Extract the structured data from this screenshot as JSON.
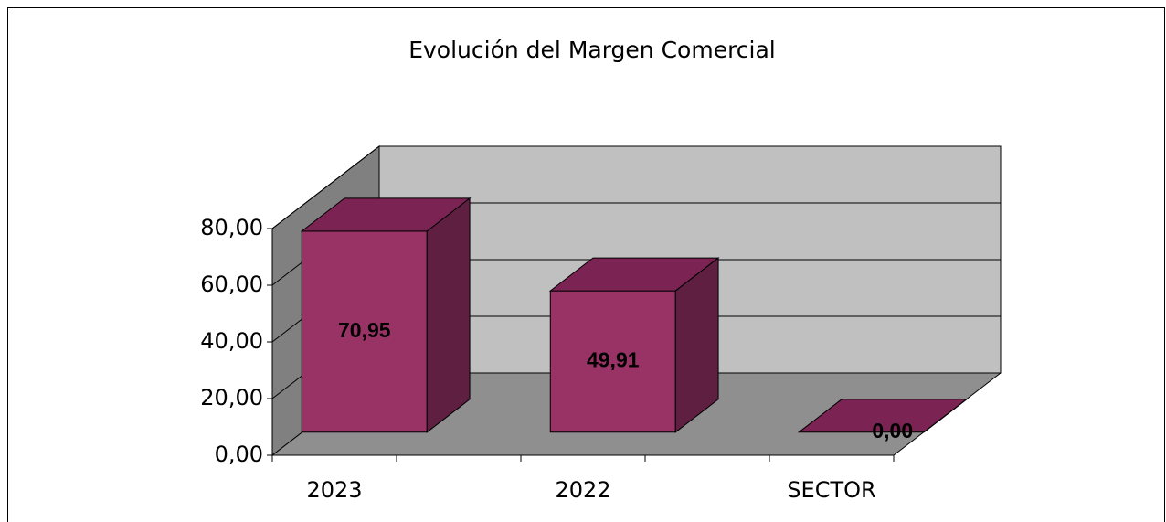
{
  "chart_data": {
    "type": "bar3d",
    "title": "Evolución del Margen Comercial",
    "categories": [
      "2023",
      "2022",
      "SECTOR"
    ],
    "values": [
      70.95,
      49.91,
      0
    ],
    "value_labels": [
      "70,95",
      "49,91",
      "0,00"
    ],
    "color": "#993366",
    "ylim": [
      0,
      80
    ],
    "yticks": [
      {
        "value": 0,
        "label": "0,00"
      },
      {
        "value": 20,
        "label": "20,00"
      },
      {
        "value": 40,
        "label": "40,00"
      },
      {
        "value": 60,
        "label": "60,00"
      },
      {
        "value": 80,
        "label": "80,00"
      }
    ],
    "grid": true
  }
}
